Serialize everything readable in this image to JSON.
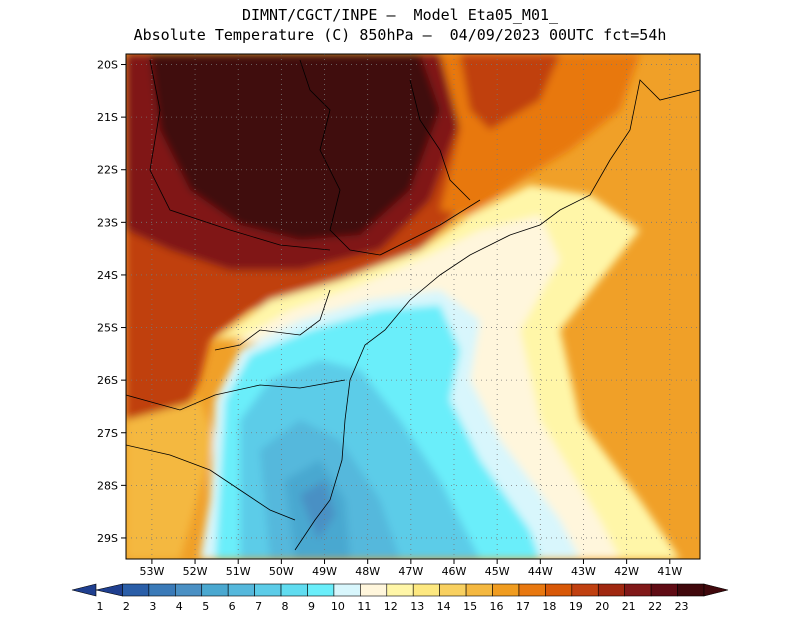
{
  "header": {
    "line1": "DIMNT/CGCT/INPE —  Model Eta05_M01_",
    "line2": "Absolute Temperature (C) 850hPa —  04/09/2023 00UTC fct=54h"
  },
  "map": {
    "lat_labels": [
      "20S",
      "21S",
      "22S",
      "23S",
      "24S",
      "25S",
      "26S",
      "27S",
      "28S",
      "29S"
    ],
    "lon_labels": [
      "53W",
      "52W",
      "51W",
      "50W",
      "49W",
      "48W",
      "47W",
      "46W",
      "45W",
      "44W",
      "43W",
      "42W",
      "41W"
    ],
    "lat_values": [
      -20,
      -21,
      -22,
      -23,
      -24,
      -25,
      -26,
      -27,
      -28,
      -29
    ],
    "lon_values": [
      -53,
      -52,
      -51,
      -50,
      -49,
      -48,
      -47,
      -46,
      -45,
      -44,
      -43,
      -42,
      -41
    ],
    "lat_range": [
      -29.4,
      -19.8
    ],
    "lon_range": [
      -53.6,
      -40.3
    ]
  },
  "colorbar": {
    "labels": [
      "1",
      "2",
      "3",
      "4",
      "5",
      "6",
      "7",
      "8",
      "9",
      "10",
      "11",
      "12",
      "13",
      "14",
      "15",
      "16",
      "17",
      "18",
      "19",
      "20",
      "21",
      "22",
      "23"
    ],
    "colors": [
      "#1f3f8f",
      "#2a5ea8",
      "#3a7ab8",
      "#4a90c4",
      "#4aa8d0",
      "#55b8dc",
      "#5ccce8",
      "#60dcf0",
      "#6aeefa",
      "#d8f6fc",
      "#fff6dc",
      "#fff6a8",
      "#fde880",
      "#f8d060",
      "#f4b840",
      "#f09c20",
      "#e87810",
      "#d85808",
      "#c04010",
      "#a02810",
      "#801818",
      "#600c14",
      "#40080c"
    ]
  }
}
